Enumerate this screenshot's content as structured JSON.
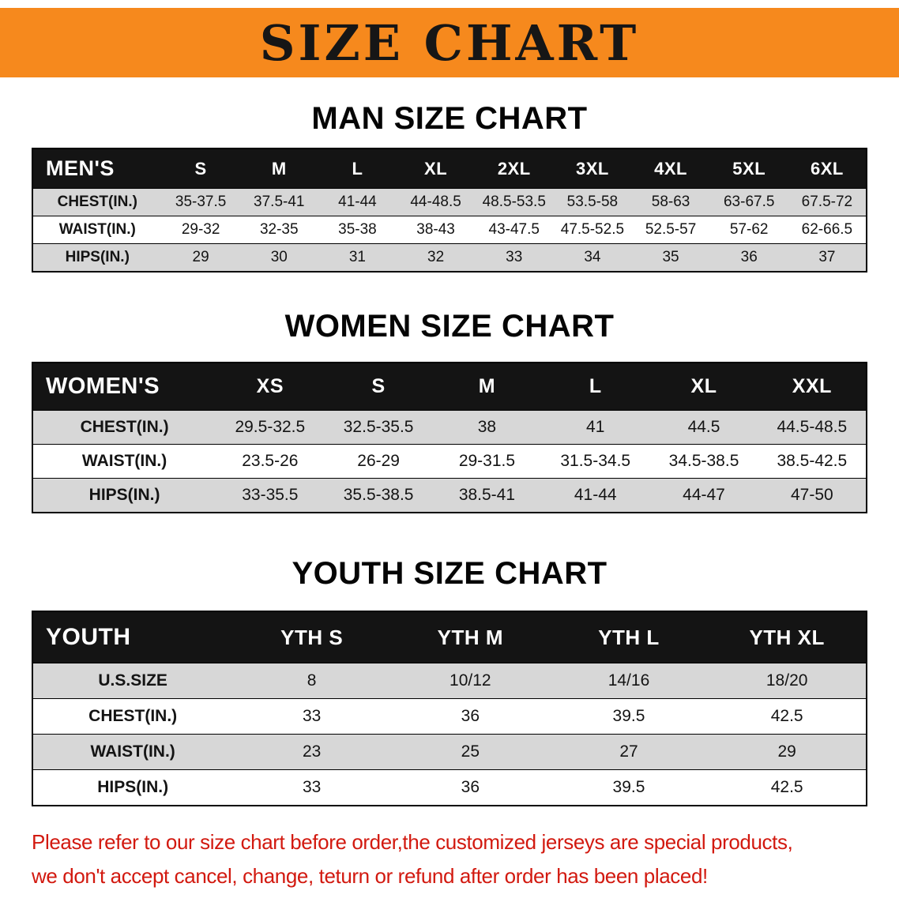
{
  "banner": {
    "title": "SIZE CHART",
    "bg_color": "#f6891d",
    "text_color": "#161616"
  },
  "sections": [
    {
      "heading": "MAN SIZE CHART",
      "table": {
        "corner_label": "MEN'S",
        "columns": [
          "S",
          "M",
          "L",
          "XL",
          "2XL",
          "3XL",
          "4XL",
          "5XL",
          "6XL"
        ],
        "rows": [
          {
            "label": "CHEST(IN.)",
            "values": [
              "35-37.5",
              "37.5-41",
              "41-44",
              "44-48.5",
              "48.5-53.5",
              "53.5-58",
              "58-63",
              "63-67.5",
              "67.5-72"
            ]
          },
          {
            "label": "WAIST(IN.)",
            "values": [
              "29-32",
              "32-35",
              "35-38",
              "38-43",
              "43-47.5",
              "47.5-52.5",
              "52.5-57",
              "57-62",
              "62-66.5"
            ]
          },
          {
            "label": "HIPS(IN.)",
            "values": [
              "29",
              "30",
              "31",
              "32",
              "33",
              "34",
              "35",
              "36",
              "37"
            ]
          }
        ]
      }
    },
    {
      "heading": "WOMEN SIZE CHART",
      "table": {
        "corner_label": "WOMEN'S",
        "columns": [
          "XS",
          "S",
          "M",
          "L",
          "XL",
          "XXL"
        ],
        "rows": [
          {
            "label": "CHEST(IN.)",
            "values": [
              "29.5-32.5",
              "32.5-35.5",
              "38",
              "41",
              "44.5",
              "44.5-48.5"
            ]
          },
          {
            "label": "WAIST(IN.)",
            "values": [
              "23.5-26",
              "26-29",
              "29-31.5",
              "31.5-34.5",
              "34.5-38.5",
              "38.5-42.5"
            ]
          },
          {
            "label": "HIPS(IN.)",
            "values": [
              "33-35.5",
              "35.5-38.5",
              "38.5-41",
              "41-44",
              "44-47",
              "47-50"
            ]
          }
        ]
      }
    },
    {
      "heading": "YOUTH SIZE CHART",
      "table": {
        "corner_label": "YOUTH",
        "columns": [
          "YTH S",
          "YTH M",
          "YTH L",
          "YTH XL"
        ],
        "rows": [
          {
            "label": "U.S.SIZE",
            "values": [
              "8",
              "10/12",
              "14/16",
              "18/20"
            ]
          },
          {
            "label": "CHEST(IN.)",
            "values": [
              "33",
              "36",
              "39.5",
              "42.5"
            ]
          },
          {
            "label": "WAIST(IN.)",
            "values": [
              "23",
              "25",
              "27",
              "29"
            ]
          },
          {
            "label": "HIPS(IN.)",
            "values": [
              "33",
              "36",
              "39.5",
              "42.5"
            ]
          }
        ]
      }
    }
  ],
  "disclaimer": {
    "line1": "Please refer to our size chart before order,the customized jerseys are special products,",
    "line2": "we don't accept cancel, change, teturn or refund after order has been placed!",
    "color": "#d2190f"
  }
}
